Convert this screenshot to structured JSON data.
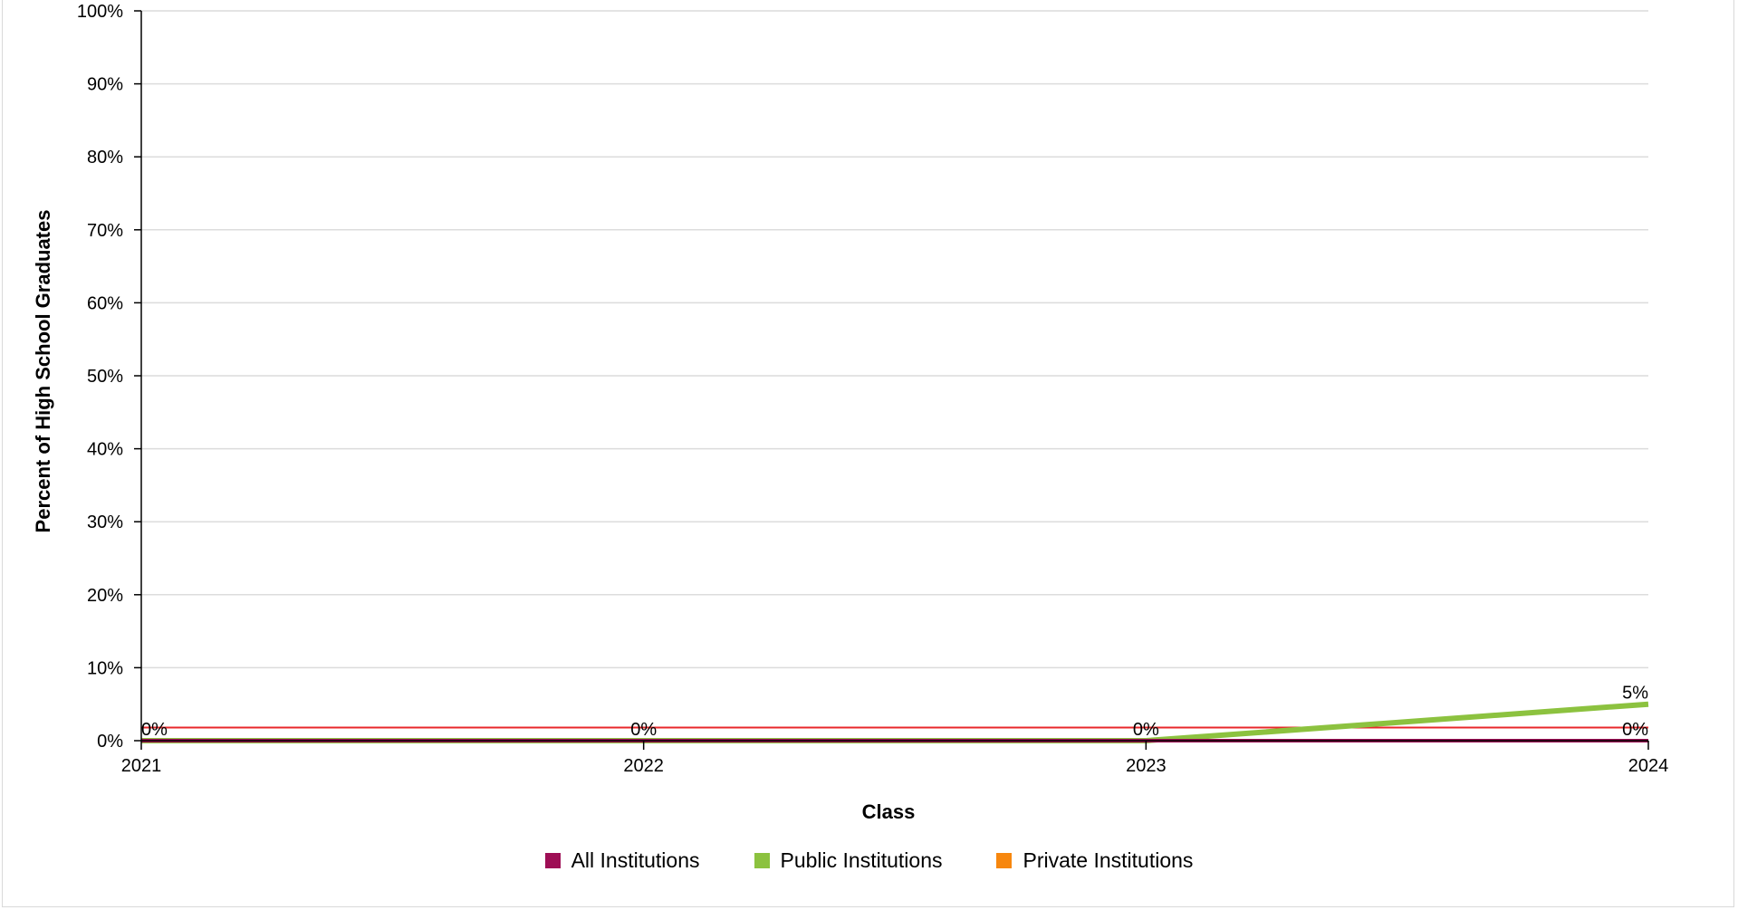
{
  "chart_data": {
    "type": "line",
    "title": "",
    "xlabel": "Class",
    "ylabel": "Percent of High School Graduates",
    "categories": [
      "2021",
      "2022",
      "2023",
      "2024"
    ],
    "ylim": [
      0,
      100
    ],
    "y_ticks": [
      0,
      10,
      20,
      30,
      40,
      50,
      60,
      70,
      80,
      90,
      100
    ],
    "y_tick_suffix": "%",
    "grid": true,
    "legend_position": "bottom",
    "reference_line": {
      "value": 1.8,
      "color": "#e8282b"
    },
    "series": [
      {
        "name": "All Institutions",
        "color": "#9e0e55",
        "values": [
          0,
          0,
          0,
          0
        ],
        "labels": [
          "0%",
          "0%",
          "0%",
          "0%"
        ]
      },
      {
        "name": "Public Institutions",
        "color": "#8cc23f",
        "values": [
          0,
          0,
          0,
          5
        ],
        "labels": [
          "",
          "",
          "",
          "5%"
        ]
      },
      {
        "name": "Private Institutions",
        "color": "#f7870e",
        "values": [
          0,
          0,
          0,
          0
        ],
        "labels": [
          "",
          "",
          "",
          ""
        ]
      }
    ]
  }
}
